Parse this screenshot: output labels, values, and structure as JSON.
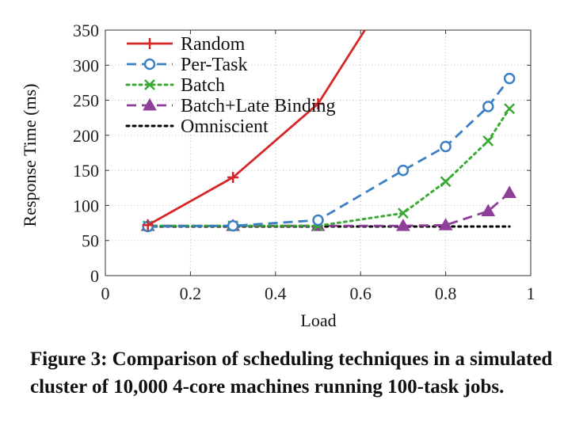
{
  "caption": "Figure 3: Comparison of scheduling techniques in a simulated cluster of 10,000 4-core machines running 100-task jobs.",
  "chart_data": {
    "type": "line",
    "title": "",
    "xlabel": "Load",
    "ylabel": "Response Time (ms)",
    "xlim": [
      0,
      1
    ],
    "ylim": [
      0,
      350
    ],
    "xticks": [
      0,
      0.2,
      0.4,
      0.6,
      0.8,
      1
    ],
    "xtick_labels": [
      "0",
      "0.2",
      "0.4",
      "0.6",
      "0.8",
      "1"
    ],
    "yticks": [
      0,
      50,
      100,
      150,
      200,
      250,
      300,
      350
    ],
    "ytick_labels": [
      "0",
      "50",
      "100",
      "150",
      "200",
      "250",
      "300",
      "350"
    ],
    "grid": true,
    "legend_position": "top-left",
    "series": [
      {
        "name": "Random",
        "color": "#d62728",
        "line_style": "solid",
        "marker": "plus",
        "x": [
          0.1,
          0.3,
          0.5,
          0.61
        ],
        "y": [
          72,
          140,
          245,
          350
        ]
      },
      {
        "name": "Per-Task",
        "color": "#3b7fc4",
        "line_style": "dashed",
        "marker": "circle",
        "x": [
          0.1,
          0.3,
          0.5,
          0.7,
          0.8,
          0.9,
          0.95
        ],
        "y": [
          70,
          71,
          79,
          150,
          184,
          241,
          281
        ]
      },
      {
        "name": "Batch",
        "color": "#3aaa35",
        "line_style": "dotted",
        "marker": "x",
        "x": [
          0.1,
          0.3,
          0.5,
          0.7,
          0.8,
          0.9,
          0.95
        ],
        "y": [
          71,
          71,
          71,
          89,
          134,
          192,
          238
        ]
      },
      {
        "name": "Batch+Late Binding",
        "color": "#8e3f98",
        "line_style": "dashed",
        "marker": "triangle",
        "x": [
          0.1,
          0.3,
          0.5,
          0.7,
          0.8,
          0.9,
          0.95
        ],
        "y": [
          71,
          71,
          71,
          71,
          72,
          92,
          118
        ]
      },
      {
        "name": "Omniscient",
        "color": "#000000",
        "line_style": "dotted",
        "marker": "none",
        "x": [
          0.1,
          0.95
        ],
        "y": [
          70,
          70
        ]
      }
    ]
  }
}
